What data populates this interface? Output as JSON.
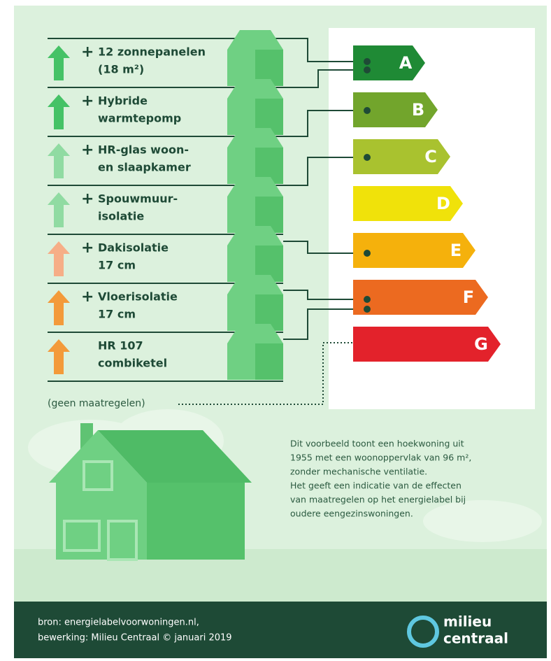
{
  "measures": [
    {
      "sign": "+",
      "lines": [
        "12 zonnepanelen",
        "(18 m²)"
      ]
    },
    {
      "sign": "+",
      "lines": [
        "Hybride",
        "warmtepomp"
      ]
    },
    {
      "sign": "+",
      "lines": [
        "HR-glas woon-",
        "en slaapkamer"
      ]
    },
    {
      "sign": "+",
      "lines": [
        "Spouwmuur-",
        "isolatie"
      ]
    },
    {
      "sign": "+",
      "lines": [
        "Dakisolatie",
        "17 cm"
      ]
    },
    {
      "sign": "+",
      "lines": [
        "Vloerisolatie",
        "17 cm"
      ]
    },
    {
      "lines": [
        "HR 107",
        "combiketel"
      ]
    }
  ],
  "baseline": "(geen maatregelen)",
  "labels": [
    {
      "letter": "A",
      "color": "#1f8a35"
    },
    {
      "letter": "B",
      "color": "#72a52c"
    },
    {
      "letter": "C",
      "color": "#a9c22f"
    },
    {
      "letter": "D",
      "color": "#f0e20a"
    },
    {
      "letter": "E",
      "color": "#f5b10c"
    },
    {
      "letter": "F",
      "color": "#ec6a20"
    },
    {
      "letter": "G",
      "color": "#e3222b"
    }
  ],
  "note": [
    "Dit voorbeeld toont een hoekwoning uit",
    "1955 met een woonoppervlak van 96 m²,",
    "zonder mechanische ventilatie.",
    "Het geeft een indicatie van de effecten",
    "van maatregelen op het energielabel bij",
    "oudere eengezinswoningen."
  ],
  "footer": {
    "source": [
      "bron: energielabelvoorwoningen.nl,",
      "bewerking: Milieu Centraal © januari 2019"
    ],
    "logo": [
      "milieu",
      "centraal"
    ]
  }
}
